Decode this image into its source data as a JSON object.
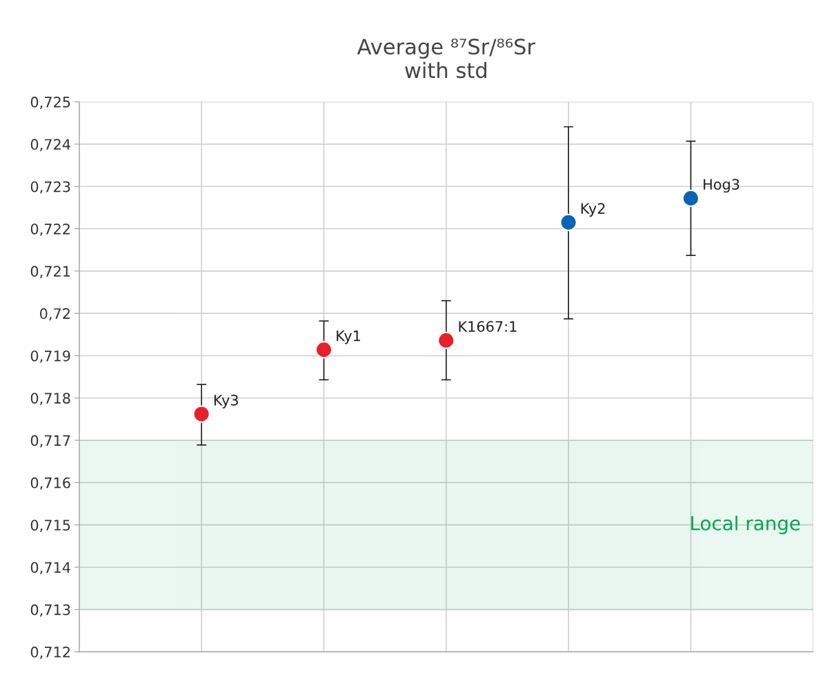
{
  "chart_data": {
    "type": "scatter",
    "title": "Average ⁸⁷Sr/⁸⁶Sr\nwith std",
    "categories": [
      null,
      null,
      null,
      null,
      null
    ],
    "values": [
      0.71762,
      0.71914,
      0.71936,
      0.72215,
      0.72272
    ],
    "colors": [
      "#e8202a",
      "#e8202a",
      "#e8202a",
      "#0a64b4",
      "#0a64b4"
    ],
    "errors": [
      [
        0.71689,
        0.71832
      ],
      [
        0.71843,
        0.71982
      ],
      [
        0.71843,
        0.7203
      ],
      [
        0.71987,
        0.72441
      ],
      [
        0.72137,
        0.72407
      ]
    ],
    "marker": "circle",
    "ylim": [
      0.712,
      0.725
    ],
    "yticks": [
      {
        "value": 0.712,
        "label": "0,712"
      },
      {
        "value": 0.713,
        "label": "0,713"
      },
      {
        "value": 0.714,
        "label": "0,714"
      },
      {
        "value": 0.715,
        "label": "0,715"
      },
      {
        "value": 0.716,
        "label": "0,716"
      },
      {
        "value": 0.717,
        "label": "0,717"
      },
      {
        "value": 0.718,
        "label": "0,718"
      },
      {
        "value": 0.719,
        "label": "0,719"
      },
      {
        "value": 0.72,
        "label": "0,72"
      },
      {
        "value": 0.721,
        "label": "0,721"
      },
      {
        "value": 0.722,
        "label": "0,722"
      },
      {
        "value": 0.723,
        "label": "0,723"
      },
      {
        "value": 0.724,
        "label": "0,724"
      },
      {
        "value": 0.725,
        "label": "0,725"
      }
    ],
    "tick_labels": "y",
    "grid": true,
    "bands": [
      {
        "axis": "y",
        "from": 0.713,
        "to": 0.717,
        "label": "Local range",
        "color": "#00a84f"
      }
    ],
    "annotations": [
      "Ky3",
      "Ky1",
      "K1667:1",
      "Ky2",
      "Hog3"
    ]
  }
}
